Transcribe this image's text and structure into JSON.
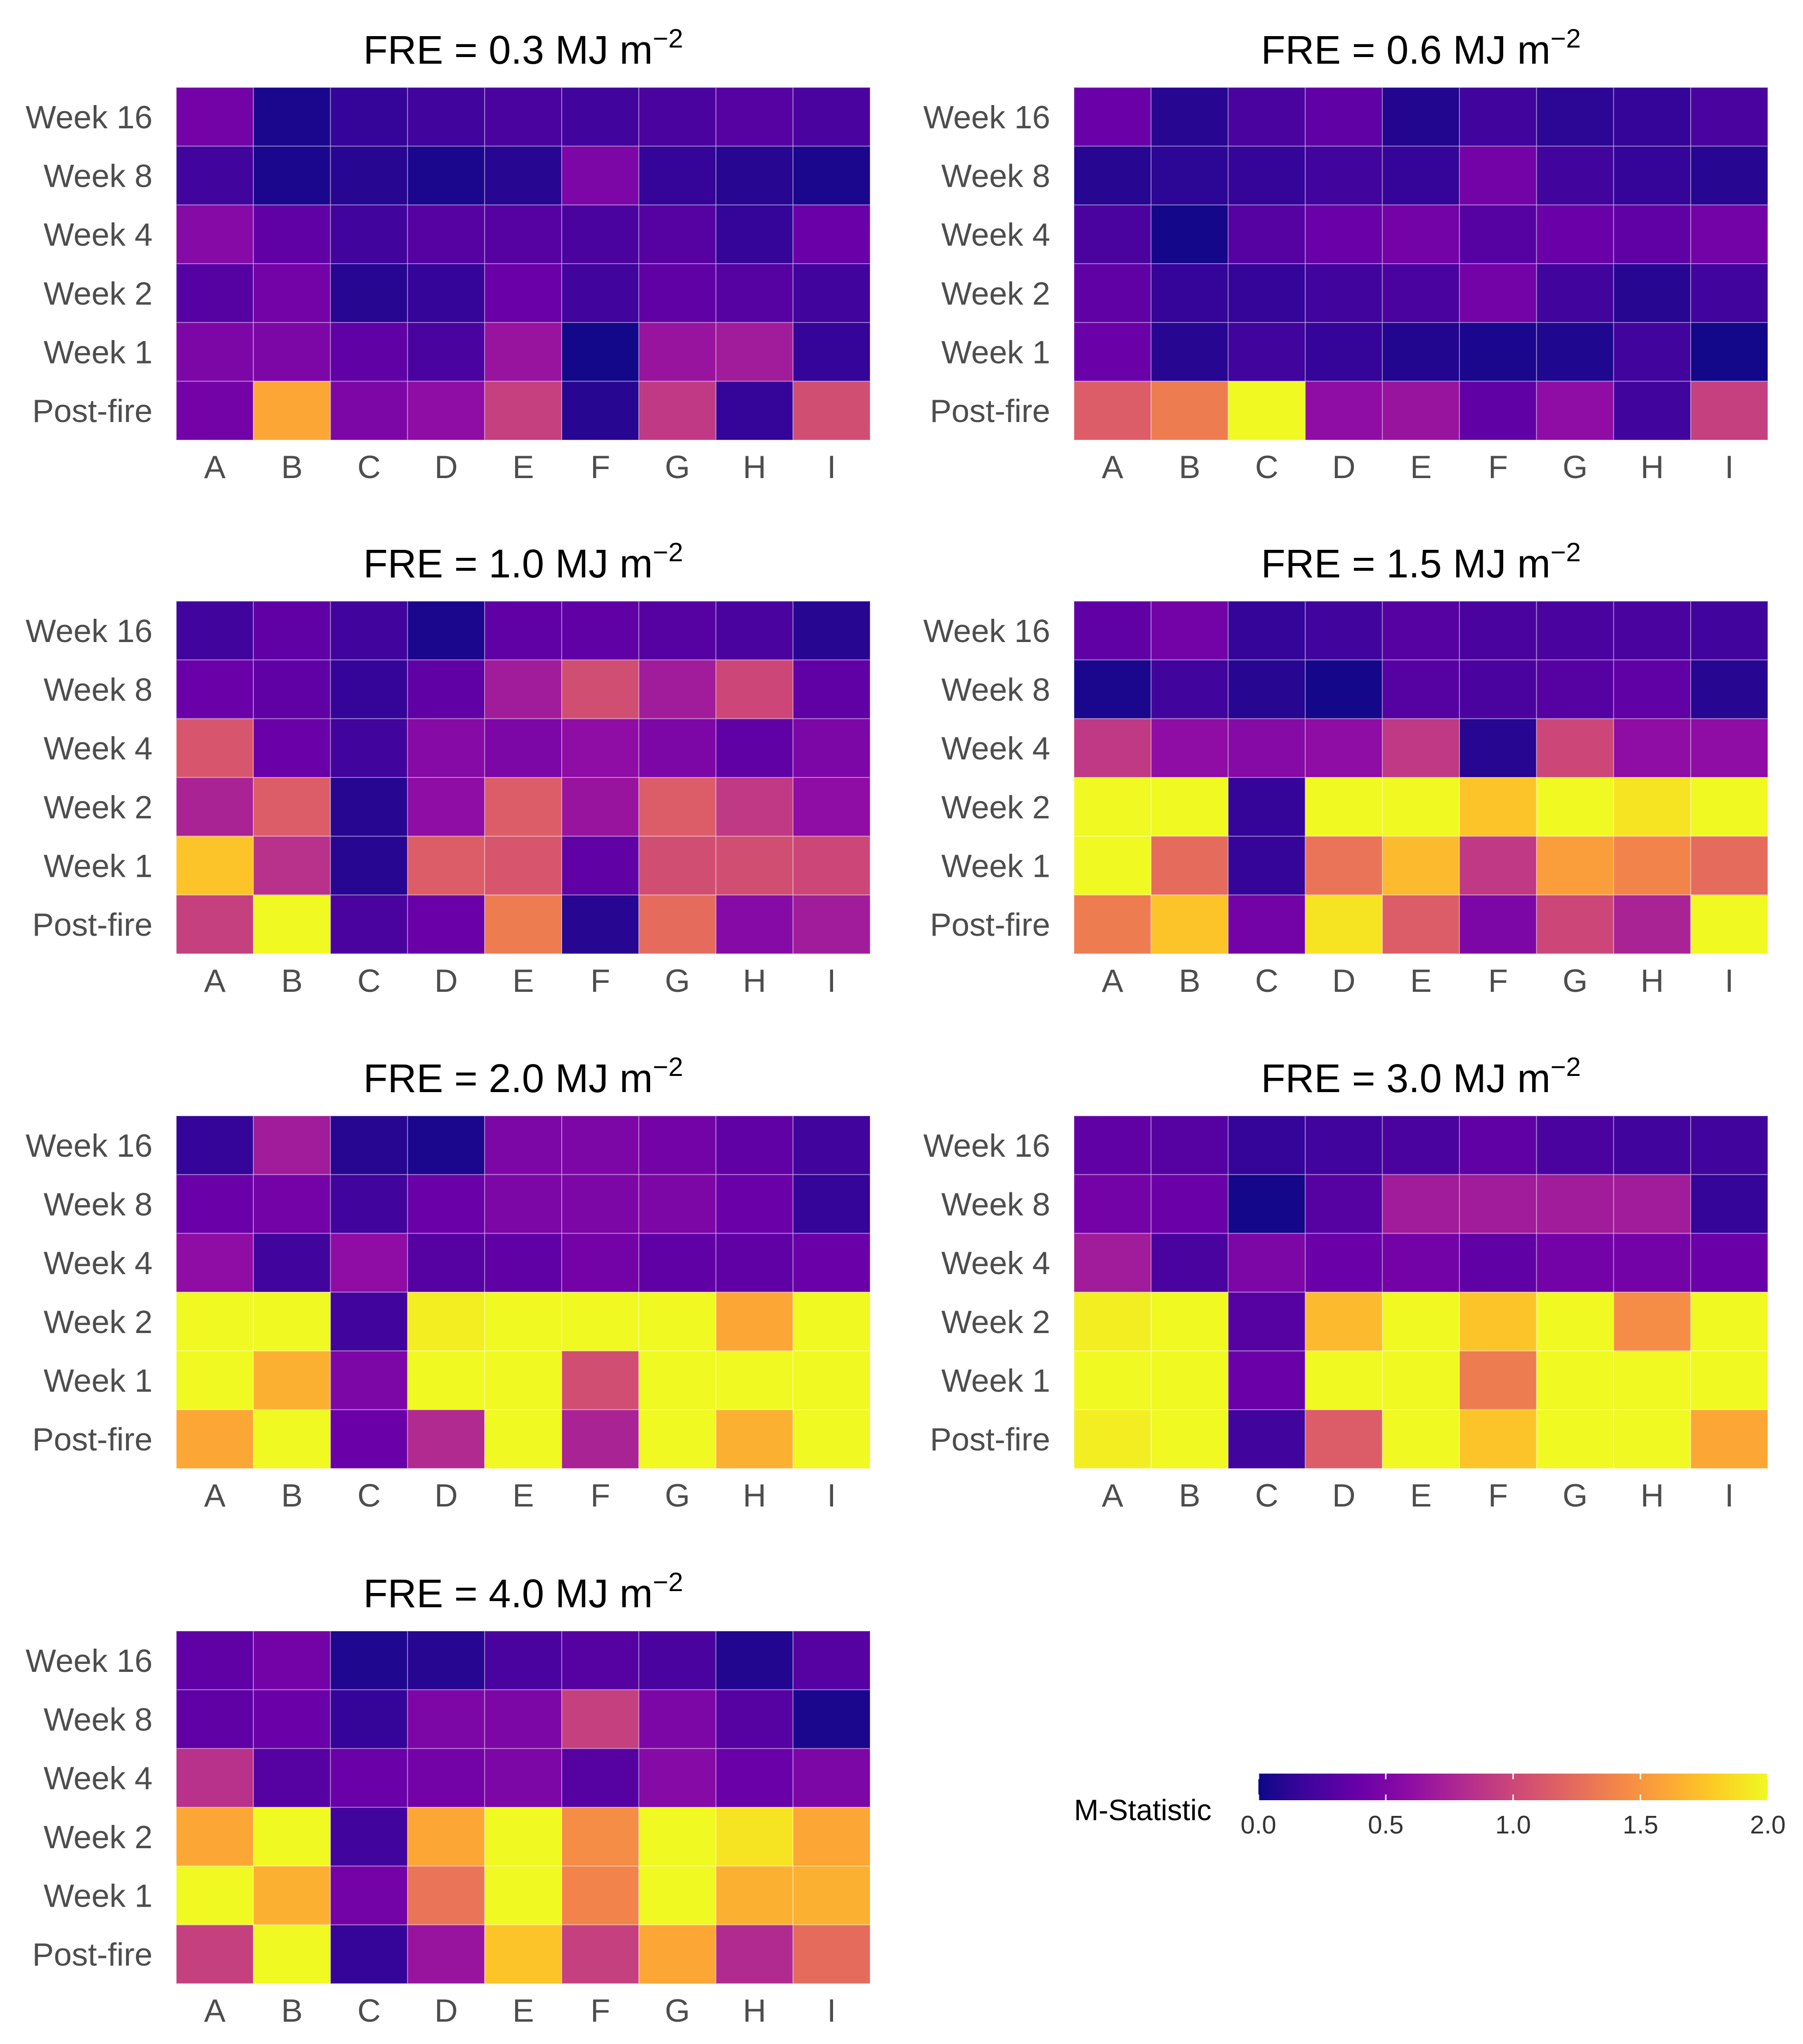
{
  "chart_data": {
    "type": "heatmap",
    "colormap": "plasma",
    "legend": {
      "title": "M-Statistic",
      "ticks": [
        "0.0",
        "0.5",
        "1.0",
        "1.5",
        "2.0"
      ],
      "range": [
        0,
        2
      ],
      "placement": "bottom-right"
    },
    "x_categories": [
      "A",
      "B",
      "C",
      "D",
      "E",
      "F",
      "G",
      "H",
      "I"
    ],
    "y_categories": [
      "Week 16",
      "Week 8",
      "Week 4",
      "Week 2",
      "Week 1",
      "Post-fire"
    ],
    "panels": [
      {
        "title": "FRE = 0.3 MJ m",
        "title_sup": "−2",
        "values": [
          [
            0.45,
            0.05,
            0.15,
            0.2,
            0.25,
            0.2,
            0.25,
            0.3,
            0.25
          ],
          [
            0.2,
            0.05,
            0.1,
            0.05,
            0.1,
            0.5,
            0.15,
            0.1,
            0.05
          ],
          [
            0.55,
            0.35,
            0.2,
            0.3,
            0.3,
            0.25,
            0.3,
            0.15,
            0.4
          ],
          [
            0.3,
            0.45,
            0.1,
            0.15,
            0.4,
            0.2,
            0.35,
            0.3,
            0.2
          ],
          [
            0.5,
            0.5,
            0.35,
            0.25,
            0.65,
            0.02,
            0.65,
            0.7,
            0.15
          ],
          [
            0.45,
            1.6,
            0.5,
            0.6,
            0.95,
            0.1,
            0.9,
            0.15,
            1.05
          ]
        ]
      },
      {
        "title": "FRE = 0.6 MJ m",
        "title_sup": "−2",
        "values": [
          [
            0.4,
            0.1,
            0.25,
            0.35,
            0.08,
            0.2,
            0.12,
            0.15,
            0.25
          ],
          [
            0.1,
            0.12,
            0.15,
            0.2,
            0.15,
            0.45,
            0.2,
            0.15,
            0.1
          ],
          [
            0.25,
            0.03,
            0.3,
            0.4,
            0.45,
            0.3,
            0.4,
            0.35,
            0.45
          ],
          [
            0.35,
            0.15,
            0.15,
            0.2,
            0.25,
            0.45,
            0.2,
            0.1,
            0.2
          ],
          [
            0.4,
            0.1,
            0.2,
            0.15,
            0.08,
            0.05,
            0.07,
            0.2,
            0.02
          ],
          [
            1.15,
            1.35,
            2.0,
            0.6,
            0.65,
            0.35,
            0.6,
            0.2,
            0.95
          ]
        ]
      },
      {
        "title": "FRE = 1.0 MJ m",
        "title_sup": "−2",
        "values": [
          [
            0.2,
            0.35,
            0.2,
            0.05,
            0.35,
            0.35,
            0.3,
            0.25,
            0.1
          ],
          [
            0.4,
            0.35,
            0.15,
            0.35,
            0.7,
            1.05,
            0.7,
            1.0,
            0.35
          ],
          [
            1.1,
            0.4,
            0.2,
            0.55,
            0.5,
            0.6,
            0.5,
            0.35,
            0.5
          ],
          [
            0.75,
            1.15,
            0.1,
            0.6,
            1.15,
            0.65,
            1.15,
            0.9,
            0.6
          ],
          [
            1.75,
            0.85,
            0.1,
            1.15,
            1.1,
            0.35,
            1.05,
            1.05,
            1.0
          ],
          [
            0.95,
            2.0,
            0.25,
            0.4,
            1.35,
            0.1,
            1.25,
            0.55,
            0.7
          ]
        ]
      },
      {
        "title": "FRE = 1.5 MJ m",
        "title_sup": "−2",
        "values": [
          [
            0.35,
            0.45,
            0.15,
            0.2,
            0.3,
            0.25,
            0.25,
            0.25,
            0.2
          ],
          [
            0.05,
            0.2,
            0.1,
            0.03,
            0.3,
            0.25,
            0.3,
            0.35,
            0.1
          ],
          [
            0.9,
            0.6,
            0.55,
            0.6,
            0.9,
            0.1,
            1.0,
            0.6,
            0.6
          ],
          [
            2.0,
            2.0,
            0.15,
            2.0,
            2.0,
            1.75,
            2.0,
            1.9,
            2.0
          ],
          [
            2.0,
            1.25,
            0.15,
            1.3,
            1.7,
            0.9,
            1.55,
            1.4,
            1.25
          ],
          [
            1.35,
            1.75,
            0.45,
            1.9,
            1.15,
            0.5,
            1.0,
            0.75,
            2.0
          ]
        ]
      },
      {
        "title": "FRE = 2.0 MJ m",
        "title_sup": "−2",
        "values": [
          [
            0.15,
            0.7,
            0.1,
            0.05,
            0.5,
            0.5,
            0.45,
            0.35,
            0.2
          ],
          [
            0.4,
            0.45,
            0.2,
            0.4,
            0.5,
            0.5,
            0.5,
            0.4,
            0.15
          ],
          [
            0.6,
            0.2,
            0.6,
            0.3,
            0.35,
            0.45,
            0.35,
            0.35,
            0.4
          ],
          [
            2.0,
            2.0,
            0.2,
            1.95,
            2.0,
            2.0,
            2.0,
            1.6,
            2.0
          ],
          [
            2.0,
            1.65,
            0.5,
            2.0,
            2.0,
            1.05,
            2.0,
            2.0,
            2.0
          ],
          [
            1.6,
            2.0,
            0.4,
            0.8,
            2.0,
            0.75,
            2.0,
            1.65,
            2.0
          ]
        ]
      },
      {
        "title": "FRE = 3.0 MJ m",
        "title_sup": "−2",
        "values": [
          [
            0.35,
            0.3,
            0.15,
            0.2,
            0.25,
            0.35,
            0.25,
            0.2,
            0.2
          ],
          [
            0.45,
            0.4,
            0.03,
            0.3,
            0.7,
            0.7,
            0.7,
            0.7,
            0.15
          ],
          [
            0.7,
            0.25,
            0.5,
            0.4,
            0.45,
            0.35,
            0.45,
            0.45,
            0.4
          ],
          [
            1.95,
            2.0,
            0.3,
            1.7,
            2.0,
            1.75,
            2.0,
            1.45,
            2.0
          ],
          [
            2.0,
            2.0,
            0.4,
            2.0,
            2.0,
            1.35,
            2.0,
            2.0,
            2.0
          ],
          [
            1.95,
            2.0,
            0.2,
            1.15,
            2.0,
            1.75,
            2.0,
            2.0,
            1.6
          ]
        ]
      },
      {
        "title": "FRE = 4.0 MJ m",
        "title_sup": "−2",
        "values": [
          [
            0.35,
            0.45,
            0.07,
            0.1,
            0.25,
            0.3,
            0.25,
            0.08,
            0.3
          ],
          [
            0.35,
            0.4,
            0.15,
            0.5,
            0.5,
            0.95,
            0.5,
            0.3,
            0.05
          ],
          [
            0.85,
            0.3,
            0.4,
            0.45,
            0.5,
            0.3,
            0.55,
            0.4,
            0.5
          ],
          [
            1.6,
            2.0,
            0.2,
            1.6,
            2.0,
            1.45,
            2.0,
            1.9,
            1.6
          ],
          [
            2.0,
            1.65,
            0.45,
            1.3,
            2.0,
            1.4,
            2.0,
            1.65,
            1.65
          ],
          [
            0.95,
            2.0,
            0.15,
            0.65,
            1.75,
            0.95,
            1.6,
            0.8,
            1.25
          ]
        ]
      }
    ]
  }
}
